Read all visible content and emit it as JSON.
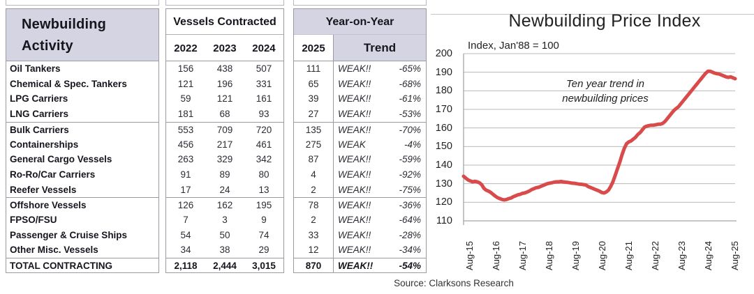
{
  "table": {
    "activity_header_line1": "Newbuilding",
    "activity_header_line2": "Activity",
    "vessels_header": "Vessels Contracted",
    "year_cols": [
      "2022",
      "2023",
      "2024"
    ],
    "yoy_header": "Year-on-Year",
    "col_2025": "2025",
    "trend_header": "Trend",
    "group_breaks": [
      4,
      9,
      13
    ],
    "rows": [
      {
        "label": "Oil Tankers",
        "v2022": "156",
        "v2023": "438",
        "v2024": "507",
        "v2025": "111",
        "trend": "WEAK!!",
        "pct": "-65%"
      },
      {
        "label": "Chemical & Spec. Tankers",
        "v2022": "121",
        "v2023": "196",
        "v2024": "331",
        "v2025": "65",
        "trend": "WEAK!!",
        "pct": "-68%"
      },
      {
        "label": "LPG Carriers",
        "v2022": "59",
        "v2023": "121",
        "v2024": "161",
        "v2025": "39",
        "trend": "WEAK!!",
        "pct": "-61%"
      },
      {
        "label": "LNG Carriers",
        "v2022": "181",
        "v2023": "68",
        "v2024": "93",
        "v2025": "27",
        "trend": "WEAK!!",
        "pct": "-53%"
      },
      {
        "label": "Bulk Carriers",
        "v2022": "553",
        "v2023": "709",
        "v2024": "720",
        "v2025": "135",
        "trend": "WEAK!!",
        "pct": "-70%"
      },
      {
        "label": "Containerships",
        "v2022": "456",
        "v2023": "217",
        "v2024": "461",
        "v2025": "275",
        "trend": "WEAK",
        "pct": "-4%"
      },
      {
        "label": "General Cargo Vessels",
        "v2022": "263",
        "v2023": "329",
        "v2024": "342",
        "v2025": "87",
        "trend": "WEAK!!",
        "pct": "-59%"
      },
      {
        "label": "Ro-Ro/Car Carriers",
        "v2022": "91",
        "v2023": "89",
        "v2024": "80",
        "v2025": "4",
        "trend": "WEAK!!",
        "pct": "-92%"
      },
      {
        "label": "Reefer Vessels",
        "v2022": "17",
        "v2023": "24",
        "v2024": "13",
        "v2025": "2",
        "trend": "WEAK!!",
        "pct": "-75%"
      },
      {
        "label": "Offshore Vessels",
        "v2022": "126",
        "v2023": "162",
        "v2024": "195",
        "v2025": "78",
        "trend": "WEAK!!",
        "pct": "-36%"
      },
      {
        "label": "FPSO/FSU",
        "v2022": "7",
        "v2023": "3",
        "v2024": "9",
        "v2025": "2",
        "trend": "WEAK!!",
        "pct": "-64%"
      },
      {
        "label": "Passenger & Cruise Ships",
        "v2022": "54",
        "v2023": "50",
        "v2024": "74",
        "v2025": "33",
        "trend": "WEAK!!",
        "pct": "-28%"
      },
      {
        "label": "Other Misc. Vessels",
        "v2022": "34",
        "v2023": "38",
        "v2024": "29",
        "v2025": "12",
        "trend": "WEAK!!",
        "pct": "-34%"
      },
      {
        "label": "TOTAL CONTRACTING",
        "v2022": "2,118",
        "v2023": "2,444",
        "v2024": "3,015",
        "v2025": "870",
        "trend": "WEAK!!",
        "pct": "-54%",
        "total": true
      }
    ]
  },
  "chart_data": {
    "type": "line",
    "title": "Newbuilding Price Index",
    "subtitle": "Index, Jan'88 = 100",
    "annotation_line1": "Ten year trend in",
    "annotation_line2": "newbuilding prices",
    "x_tick_labels": [
      "Aug-15",
      "Aug-16",
      "Aug-17",
      "Aug-18",
      "Aug-19",
      "Aug-20",
      "Aug-21",
      "Aug-22",
      "Aug-23",
      "Aug-24",
      "Aug-25"
    ],
    "y_ticks": [
      200,
      190,
      180,
      170,
      160,
      150,
      140,
      130,
      120,
      110
    ],
    "ylim": [
      110,
      200
    ],
    "grid": true,
    "legend": false,
    "line_color": "#d94b4b",
    "series": [
      {
        "name": "Newbuilding Price Index (monthly, Aug-2015 to Aug-2025)",
        "x_start": "Aug-2015",
        "x_interval": "monthly",
        "values": [
          134,
          133,
          132,
          131.5,
          131,
          131.3,
          131,
          130.5,
          129.5,
          127.5,
          126.5,
          126,
          125.3,
          124.3,
          123.3,
          122.5,
          122,
          121.5,
          121.3,
          121.5,
          122,
          122.3,
          123,
          123.5,
          124,
          124.3,
          124.8,
          125,
          125.5,
          126,
          126.8,
          127.3,
          127.8,
          128,
          128.5,
          129,
          129.5,
          130,
          130.3,
          130.5,
          130.8,
          131,
          131,
          131.2,
          131,
          130.8,
          130.7,
          130.5,
          130.3,
          130.2,
          130,
          129.8,
          129.7,
          129.5,
          129.3,
          128.5,
          128,
          127.5,
          127,
          126.5,
          126,
          125.3,
          125,
          125.5,
          126.5,
          128.5,
          131,
          134.5,
          138,
          141.5,
          145.5,
          149,
          151.5,
          152.5,
          153,
          154,
          155,
          156.5,
          157.5,
          159,
          160.5,
          161,
          161.3,
          161.5,
          161.5,
          161.7,
          162,
          162,
          162.5,
          163.5,
          165,
          166.5,
          168,
          169.5,
          170.5,
          171.5,
          173,
          174.5,
          176,
          177.5,
          179,
          180.5,
          182,
          183.5,
          185,
          186.5,
          188,
          189.5,
          190.5,
          190.5,
          190,
          189.5,
          189.2,
          189,
          188.5,
          188,
          187.5,
          187.2,
          187.5,
          187,
          186.5
        ]
      }
    ]
  },
  "source": {
    "text": "Source: Clarksons Research"
  },
  "colors": {
    "header_bg": "#d4d4e2",
    "line_red": "#d94b4b",
    "grid": "#b8b8b8",
    "axis": "#8e8e94",
    "border": "#9a9aa2",
    "text": "#15151d"
  }
}
